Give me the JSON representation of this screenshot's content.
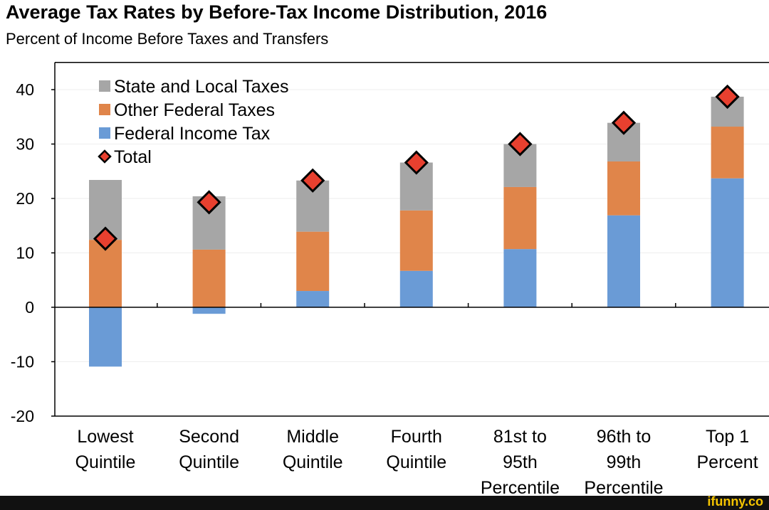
{
  "chart_data": {
    "type": "bar",
    "stacked": true,
    "title": "Average Tax Rates by Before-Tax Income Distribution, 2016",
    "subtitle": "Percent of Income Before Taxes and Transfers",
    "categories": [
      [
        "Lowest",
        "Quintile"
      ],
      [
        "Second",
        "Quintile"
      ],
      [
        "Middle",
        "Quintile"
      ],
      [
        "Fourth",
        "Quintile"
      ],
      [
        "81st to",
        "95th",
        "Percentile"
      ],
      [
        "96th to",
        "99th",
        "Percentile"
      ],
      [
        "Top 1",
        "Percent"
      ]
    ],
    "series": [
      {
        "name": "Federal Income Tax",
        "color": "#6a9bd6",
        "values": [
          -10.9,
          -1.2,
          3.0,
          6.7,
          10.7,
          16.9,
          23.7
        ]
      },
      {
        "name": "Other Federal Taxes",
        "color": "#e0854a",
        "values": [
          12.4,
          10.6,
          10.9,
          11.1,
          11.4,
          9.9,
          9.5
        ]
      },
      {
        "name": "State and Local Taxes",
        "color": "#a6a6a6",
        "values": [
          11.0,
          9.8,
          9.4,
          8.8,
          7.9,
          7.1,
          5.5
        ]
      }
    ],
    "total": {
      "name": "Total",
      "color": "#e8402f",
      "values": [
        12.6,
        19.3,
        23.3,
        26.6,
        30.0,
        33.9,
        38.7
      ]
    },
    "legend_order": [
      "State and Local Taxes",
      "Other Federal Taxes",
      "Federal Income Tax",
      "Total"
    ],
    "yticks": [
      40,
      30,
      20,
      10,
      0,
      -10,
      -20
    ],
    "ylim": [
      -20,
      45
    ],
    "legend": "top-left",
    "grid": true
  },
  "watermark": "ifunny.co"
}
